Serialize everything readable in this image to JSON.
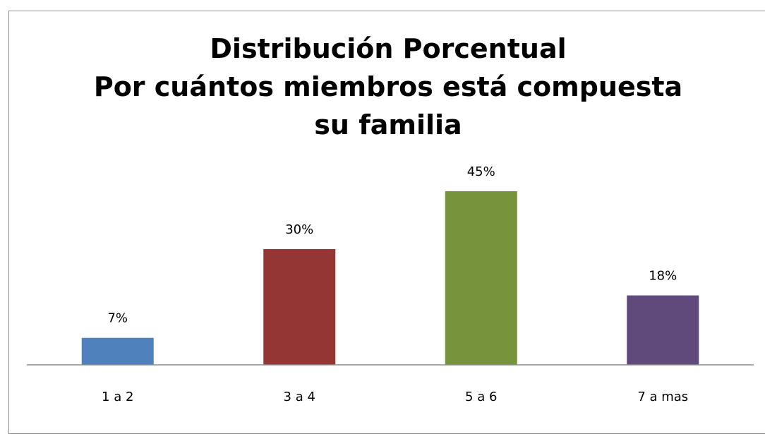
{
  "chart_data": {
    "type": "bar",
    "title": [
      "Distribución Porcentual",
      "Por cuántos miembros está compuesta su familia"
    ],
    "categories": [
      "1 a 2",
      "3 a 4",
      "5 a 6",
      "7 a mas"
    ],
    "values": [
      7,
      30,
      45,
      18
    ],
    "value_labels": [
      "7%",
      "30%",
      "45%",
      "18%"
    ],
    "colors": [
      "#4f81bd",
      "#943634",
      "#77933c",
      "#604a7b"
    ]
  }
}
